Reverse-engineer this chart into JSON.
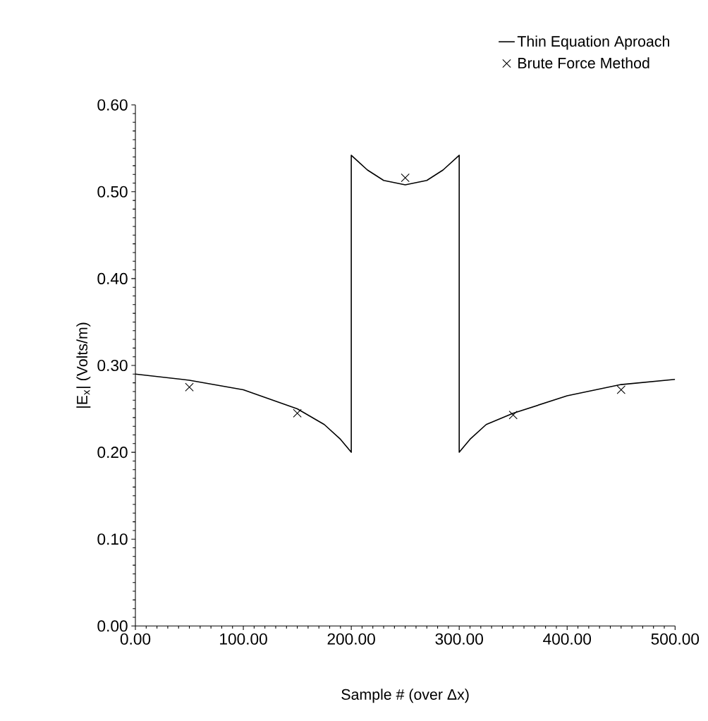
{
  "chart_data": {
    "type": "line",
    "xlabel": "Sample # (over Δx)",
    "ylabel": "|E$_{x}$|  (Volts/m)",
    "xlim": [
      0,
      500
    ],
    "ylim": [
      0,
      0.6
    ],
    "xticks": [
      {
        "value": 0,
        "label": "0.00"
      },
      {
        "value": 100,
        "label": "100.00"
      },
      {
        "value": 200,
        "label": "200.00"
      },
      {
        "value": 300,
        "label": "300.00"
      },
      {
        "value": 400,
        "label": "400.00"
      },
      {
        "value": 500,
        "label": "500.00"
      }
    ],
    "yticks": [
      {
        "value": 0,
        "label": "0.00"
      },
      {
        "value": 0.1,
        "label": "0.10"
      },
      {
        "value": 0.2,
        "label": "0.20"
      },
      {
        "value": 0.3,
        "label": "0.30"
      },
      {
        "value": 0.4,
        "label": "0.40"
      },
      {
        "value": 0.5,
        "label": "0.50"
      },
      {
        "value": 0.6,
        "label": "0.60"
      }
    ],
    "legend": "top right",
    "grid": false,
    "series": [
      {
        "name": "Thin Equation Aproach",
        "marker": "none",
        "line_style": "solid",
        "color": "#000000",
        "x": [
          0,
          50,
          100,
          150,
          175,
          190,
          200,
          200,
          215,
          230,
          250,
          270,
          285,
          300,
          300,
          310,
          325,
          350,
          400,
          450,
          500
        ],
        "values": [
          0.29,
          0.283,
          0.272,
          0.25,
          0.232,
          0.215,
          0.2,
          0.542,
          0.525,
          0.513,
          0.508,
          0.513,
          0.525,
          0.542,
          0.2,
          0.215,
          0.232,
          0.245,
          0.265,
          0.278,
          0.284
        ]
      },
      {
        "name": "Brute Force Method",
        "type": "scatter",
        "marker": "cross",
        "color": "#000000",
        "x": [
          50,
          150,
          250,
          350,
          450
        ],
        "values": [
          0.275,
          0.245,
          0.516,
          0.243,
          0.272
        ]
      }
    ]
  }
}
